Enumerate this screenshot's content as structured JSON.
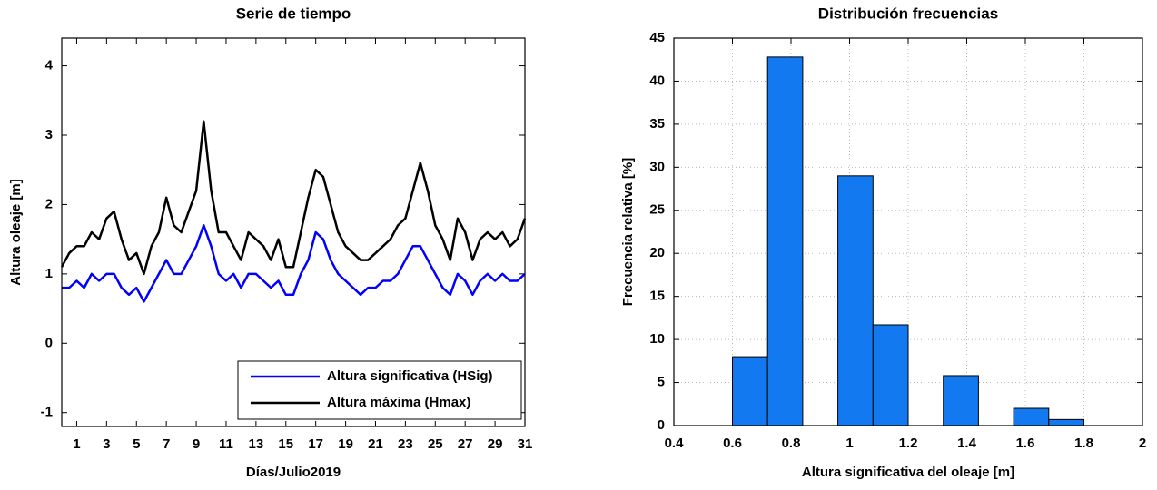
{
  "chart_data": [
    {
      "type": "line",
      "title": "Serie de tiempo",
      "xlabel": "Días/Julio2019",
      "ylabel": "Altura oleaje [m]",
      "x": [
        0,
        0.5,
        1,
        1.5,
        2,
        2.5,
        3,
        3.5,
        4,
        4.5,
        5,
        5.5,
        6,
        6.5,
        7,
        7.5,
        8,
        8.5,
        9,
        9.5,
        10,
        10.5,
        11,
        11.5,
        12,
        12.5,
        13,
        13.5,
        14,
        14.5,
        15,
        15.5,
        16,
        16.5,
        17,
        17.5,
        18,
        18.5,
        19,
        19.5,
        20,
        20.5,
        21,
        21.5,
        22,
        22.5,
        23,
        23.5,
        24,
        24.5,
        25,
        25.5,
        26,
        26.5,
        27,
        27.5,
        28,
        28.5,
        29,
        29.5,
        30,
        30.5,
        31
      ],
      "series": [
        {
          "name": "Altura significativa (HSig)",
          "color": "#0000ff",
          "values": [
            0.8,
            0.8,
            0.9,
            0.8,
            1.0,
            0.9,
            1.0,
            1.0,
            0.8,
            0.7,
            0.8,
            0.6,
            0.8,
            1.0,
            1.2,
            1.0,
            1.0,
            1.2,
            1.4,
            1.7,
            1.4,
            1.0,
            0.9,
            1.0,
            0.8,
            1.0,
            1.0,
            0.9,
            0.8,
            0.9,
            0.7,
            0.7,
            1.0,
            1.2,
            1.6,
            1.5,
            1.2,
            1.0,
            0.9,
            0.8,
            0.7,
            0.8,
            0.8,
            0.9,
            0.9,
            1.0,
            1.2,
            1.4,
            1.4,
            1.2,
            1.0,
            0.8,
            0.7,
            1.0,
            0.9,
            0.7,
            0.9,
            1.0,
            0.9,
            1.0,
            0.9,
            0.9,
            1.0
          ]
        },
        {
          "name": "Altura máxima (Hmax)",
          "color": "#000000",
          "values": [
            1.1,
            1.3,
            1.4,
            1.4,
            1.6,
            1.5,
            1.8,
            1.9,
            1.5,
            1.2,
            1.3,
            1.0,
            1.4,
            1.6,
            2.1,
            1.7,
            1.6,
            1.9,
            2.2,
            3.2,
            2.2,
            1.6,
            1.6,
            1.4,
            1.2,
            1.6,
            1.5,
            1.4,
            1.2,
            1.5,
            1.1,
            1.1,
            1.6,
            2.1,
            2.5,
            2.4,
            2.0,
            1.6,
            1.4,
            1.3,
            1.2,
            1.2,
            1.3,
            1.4,
            1.5,
            1.7,
            1.8,
            2.2,
            2.6,
            2.2,
            1.7,
            1.5,
            1.2,
            1.8,
            1.6,
            1.2,
            1.5,
            1.6,
            1.5,
            1.6,
            1.4,
            1.5,
            1.8
          ]
        }
      ],
      "xlim": [
        0,
        31
      ],
      "xticks": [
        1,
        3,
        5,
        7,
        9,
        11,
        13,
        15,
        17,
        19,
        21,
        23,
        25,
        27,
        29,
        31
      ],
      "ylim": [
        -1.2,
        4.4
      ],
      "yticks": [
        -1,
        0,
        1,
        2,
        3,
        4
      ],
      "grid": false,
      "legend_position": "lower right"
    },
    {
      "type": "histogram",
      "title": "Distribución frecuencias",
      "xlabel": "Altura significativa del oleaje [m]",
      "ylabel": "Frecuencia relativa [%]",
      "bins": [
        0.6,
        0.72,
        0.84,
        0.96,
        1.08,
        1.2,
        1.32,
        1.44,
        1.56,
        1.68,
        1.8
      ],
      "values": [
        8,
        42.8,
        0,
        29,
        11.7,
        0,
        5.8,
        0,
        2.0,
        0.7
      ],
      "color": "#1279f0",
      "xlim": [
        0.4,
        2
      ],
      "xticks": [
        0.4,
        0.6,
        0.8,
        1,
        1.2,
        1.4,
        1.6,
        1.8,
        2
      ],
      "ylim": [
        0,
        45
      ],
      "yticks": [
        0,
        5,
        10,
        15,
        20,
        25,
        30,
        35,
        40,
        45
      ],
      "grid": true
    }
  ]
}
